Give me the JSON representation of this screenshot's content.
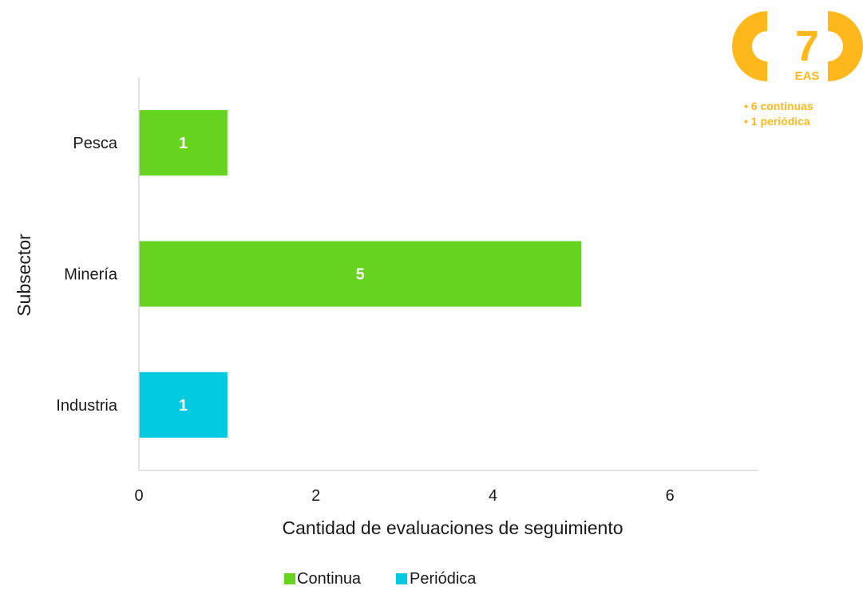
{
  "chart_data": {
    "type": "bar",
    "orientation": "horizontal",
    "xlabel": "Cantidad de evaluaciones de seguimiento",
    "ylabel": "Subsector",
    "xlim": [
      0,
      7
    ],
    "xticks": [
      "0",
      "2",
      "4",
      "6"
    ],
    "grid": false,
    "legend_position": "bottom",
    "categories": [
      "Pesca",
      "Minería",
      "Industria"
    ],
    "series": [
      {
        "name": "Continua",
        "color": "#66d41e",
        "values": [
          1,
          5,
          null
        ]
      },
      {
        "name": "Periódica",
        "color": "#00c9e0",
        "values": [
          null,
          null,
          1
        ]
      }
    ],
    "data_labels": [
      "1",
      "5",
      "1"
    ]
  },
  "badge": {
    "number": "7",
    "unit": "EAS",
    "color": "#ffb81c",
    "items": [
      "• 6 continuas",
      "• 1 periódica"
    ]
  }
}
